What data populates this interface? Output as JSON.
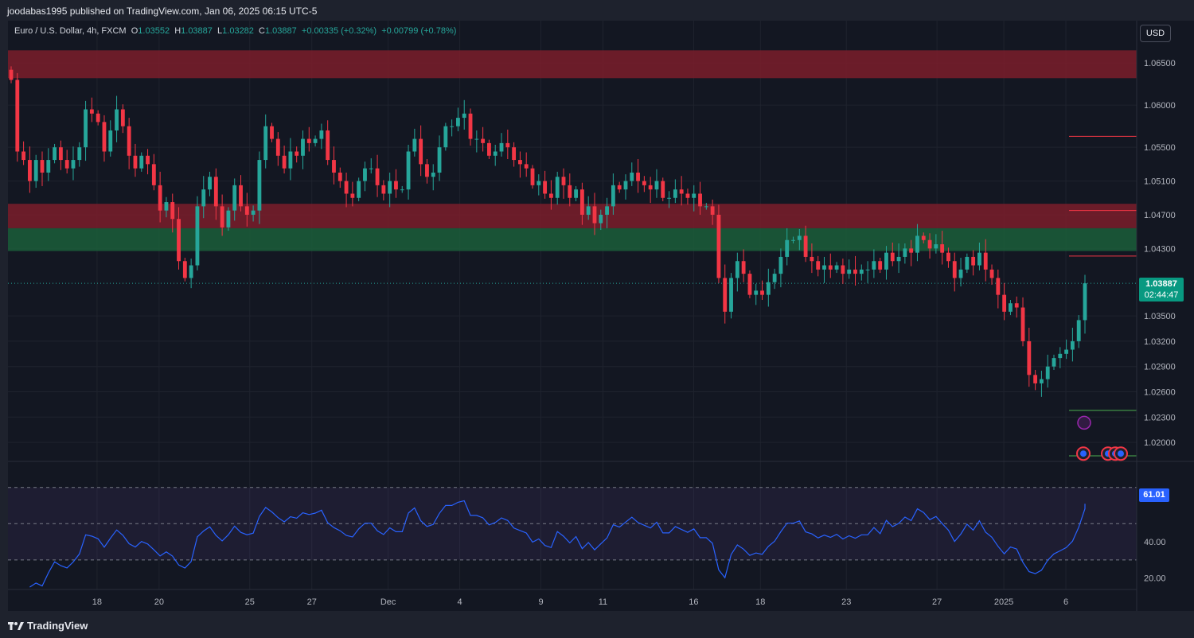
{
  "header": {
    "published": "joodabas1995 published on TradingView.com, Jan 06, 2025 06:15 UTC-5"
  },
  "legend": {
    "symbol": "Euro / U.S. Dollar, 4h, FXCM",
    "o_label": "O",
    "o_value": "1.03552",
    "h_label": "H",
    "h_value": "1.03887",
    "l_label": "L",
    "l_value": "1.03282",
    "c_label": "C",
    "c_value": "1.03887",
    "change": "+0.00335 (+0.32%)",
    "change2": "+0.00799 (+0.78%)"
  },
  "currency_button": "USD",
  "price_badge": {
    "price": "1.03887",
    "countdown": "02:44:47"
  },
  "rsi_badge": "61.01",
  "footer": {
    "brand": "TradingView"
  },
  "colors": {
    "up": "#26a69a",
    "down": "#f23645",
    "rsi_line": "#2962ff",
    "background": "#131722",
    "supply_zone": "#7f1d2b",
    "demand_zone": "#1b5e3a"
  },
  "chart_data": [
    {
      "type": "candlestick",
      "symbol": "EURUSD",
      "timeframe": "4h",
      "y_ticks": [
        1.065,
        1.06,
        1.055,
        1.051,
        1.047,
        1.043,
        1.035,
        1.032,
        1.029,
        1.026,
        1.023,
        1.02
      ],
      "ylim": [
        1.0185,
        1.067
      ],
      "x_ticks": [
        "18",
        "20",
        "25",
        "27",
        "Dec",
        "4",
        "9",
        "11",
        "16",
        "18",
        "23",
        "27",
        "2025",
        "6"
      ],
      "last_price": 1.03887,
      "zones": [
        {
          "kind": "supply",
          "from": 1.0632,
          "to": 1.0665
        },
        {
          "kind": "supply",
          "from": 1.0454,
          "to": 1.0483
        },
        {
          "kind": "demand",
          "from": 1.0427,
          "to": 1.0454
        }
      ],
      "levels": [
        {
          "price": 1.0563,
          "color": "red"
        },
        {
          "price": 1.0475,
          "color": "red"
        },
        {
          "price": 1.0421,
          "color": "red"
        },
        {
          "price": 1.0238,
          "color": "green"
        },
        {
          "price": 1.0184,
          "color": "green"
        }
      ],
      "closes": [
        1.063,
        1.0545,
        1.0535,
        1.051,
        1.0535,
        1.052,
        1.0535,
        1.055,
        1.0535,
        1.0525,
        1.0535,
        1.055,
        1.0595,
        1.059,
        1.058,
        1.0545,
        1.057,
        1.0595,
        1.0575,
        1.054,
        1.0525,
        1.054,
        1.053,
        1.0505,
        1.0475,
        1.0485,
        1.0465,
        1.0415,
        1.0395,
        1.041,
        1.048,
        1.05,
        1.0515,
        1.048,
        1.0455,
        1.0475,
        1.0505,
        1.048,
        1.047,
        1.0475,
        1.0535,
        1.0575,
        1.056,
        1.054,
        1.0525,
        1.0545,
        1.054,
        1.056,
        1.0555,
        1.056,
        1.057,
        1.0535,
        1.052,
        1.051,
        1.0495,
        1.049,
        1.051,
        1.0525,
        1.0525,
        1.0505,
        1.0495,
        1.051,
        1.05,
        1.05,
        1.0545,
        1.056,
        1.053,
        1.0515,
        1.052,
        1.055,
        1.0575,
        1.0575,
        1.0585,
        1.059,
        1.056,
        1.056,
        1.0555,
        1.054,
        1.0545,
        1.0555,
        1.055,
        1.0535,
        1.053,
        1.0525,
        1.0505,
        1.051,
        1.0495,
        1.049,
        1.0515,
        1.0505,
        1.049,
        1.05,
        1.047,
        1.048,
        1.046,
        1.047,
        1.048,
        1.0505,
        1.05,
        1.051,
        1.052,
        1.051,
        1.0505,
        1.05,
        1.051,
        1.049,
        1.049,
        1.05,
        1.0495,
        1.049,
        1.0495,
        1.048,
        1.048,
        1.047,
        1.0395,
        1.0355,
        1.0395,
        1.0415,
        1.04,
        1.0375,
        1.038,
        1.0375,
        1.039,
        1.04,
        1.042,
        1.044,
        1.044,
        1.0445,
        1.042,
        1.0415,
        1.0405,
        1.041,
        1.0405,
        1.041,
        1.04,
        1.0405,
        1.04,
        1.0405,
        1.0405,
        1.0415,
        1.0405,
        1.0425,
        1.0415,
        1.042,
        1.043,
        1.0425,
        1.0445,
        1.044,
        1.043,
        1.0435,
        1.0425,
        1.0415,
        1.0395,
        1.0405,
        1.042,
        1.041,
        1.0425,
        1.0405,
        1.0395,
        1.0375,
        1.0355,
        1.0365,
        1.036,
        1.032,
        1.028,
        1.027,
        1.0275,
        1.029,
        1.03,
        1.0305,
        1.031,
        1.032,
        1.0345,
        1.03887
      ]
    },
    {
      "type": "line",
      "indicator": "RSI",
      "y_ticks": [
        40.0,
        20.0
      ],
      "bands": [
        30,
        50,
        70
      ],
      "ylim": [
        15,
        80
      ],
      "last_value": 61.01
    }
  ]
}
